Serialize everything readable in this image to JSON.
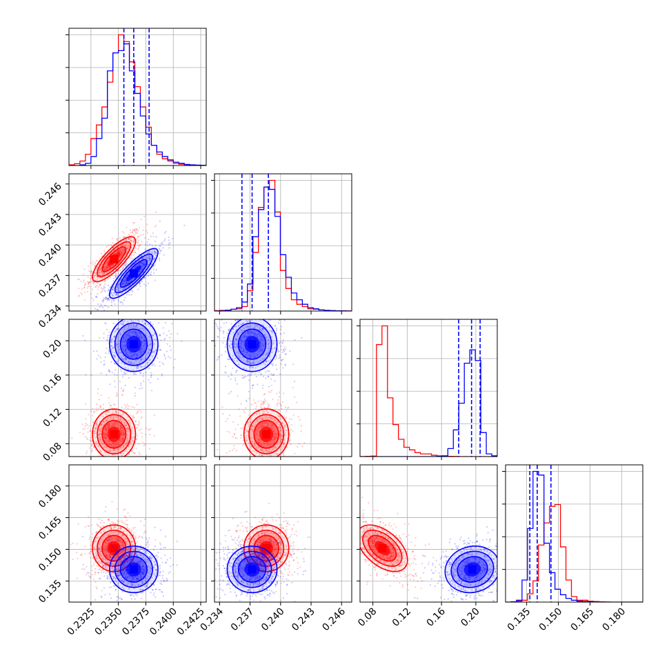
{
  "chart_data": {
    "type": "corner",
    "title": "",
    "grid": true,
    "parameters": 4,
    "series": [
      {
        "color": "#ff0000",
        "means": [
          0.2346,
          0.2386,
          0.091,
          0.1505
        ],
        "sds": [
          0.0008,
          0.0009,
          0.012,
          0.0045
        ]
      },
      {
        "color": "#0000ff",
        "means": [
          0.2364,
          0.2372,
          0.196,
          0.1405
        ],
        "sds": [
          0.0009,
          0.001,
          0.013,
          0.0045
        ]
      }
    ],
    "correlations": [
      {
        "pair": [
          0,
          1
        ],
        "red": 0.8,
        "blue": 0.85
      },
      {
        "pair": [
          0,
          2
        ],
        "red": 0.0,
        "blue": 0.0
      },
      {
        "pair": [
          1,
          2
        ],
        "red": 0.0,
        "blue": 0.0
      },
      {
        "pair": [
          0,
          3
        ],
        "red": 0.0,
        "blue": 0.0
      },
      {
        "pair": [
          1,
          3
        ],
        "red": 0.0,
        "blue": 0.0
      },
      {
        "pair": [
          2,
          3
        ],
        "red": -0.5,
        "blue": 0.1
      }
    ],
    "quantile_lines": [
      [
        0.2355,
        0.2364,
        0.2378
      ],
      [
        0.2362,
        0.2372,
        0.2388
      ],
      [
        0.18,
        0.195,
        0.205
      ],
      [
        0.1365,
        0.14,
        0.1465
      ]
    ],
    "ranges": [
      [
        0.2305,
        0.243
      ],
      [
        0.2335,
        0.247
      ],
      [
        0.065,
        0.225
      ],
      [
        0.125,
        0.19
      ]
    ],
    "ticks": [
      [
        "0.2325",
        "0.2350",
        "0.2375",
        "0.2400",
        "0.2425"
      ],
      [
        "0.234",
        "0.237",
        "0.240",
        "0.243",
        "0.246"
      ],
      [
        "0.08",
        "0.12",
        "0.16",
        "0.20"
      ],
      [
        "0.135",
        "0.150",
        "0.165",
        "0.180"
      ]
    ],
    "histograms": {
      "red": [
        [
          0.3,
          0.8,
          2.0,
          5.0,
          12.0,
          18.0,
          26.0,
          37.0,
          50.0,
          58.0,
          55.0,
          46.0,
          35.0,
          26.0,
          17.0,
          9.0,
          5.0,
          3.0,
          2.0,
          1.0,
          0.6,
          0.3,
          0.2,
          0.1,
          0.1
        ],
        [
          0.2,
          0.3,
          0.4,
          0.8,
          1.0,
          2.0,
          9.0,
          26.0,
          46.0,
          55.0,
          58.0,
          44.0,
          18.0,
          10.0,
          5.0,
          3.0,
          2.0,
          1.0,
          0.8,
          0.5,
          0.3,
          0.2,
          0.1,
          0.1,
          0.05
        ],
        [
          0.0,
          0.1,
          0.2,
          42.0,
          49.0,
          22.0,
          12.0,
          6.5,
          3.5,
          2.5,
          1.5,
          1.0,
          1.0,
          0.5,
          0.3,
          0.2,
          0.1,
          0.05,
          0.0,
          0.0,
          0.0,
          0.0,
          0.0,
          0.0,
          0.0
        ],
        [
          0.0,
          0.0,
          0.5,
          1.0,
          4.5,
          11.5,
          31.0,
          43.0,
          52.0,
          53.0,
          30.0,
          12.0,
          3.0,
          1.0,
          1.0,
          0.5,
          0.3,
          0.2,
          0.1,
          0.0,
          0.0,
          0.0,
          0.0,
          0.0,
          0.0
        ]
      ],
      "blue": [
        [
          0.0,
          0.0,
          0.3,
          1.0,
          4.0,
          12.0,
          21.0,
          42.0,
          50.0,
          51.0,
          54.0,
          42.0,
          32.0,
          22.0,
          14.0,
          9.0,
          6.0,
          4.0,
          2.5,
          1.5,
          1.0,
          0.5,
          0.3,
          0.2,
          0.1
        ],
        [
          0.0,
          0.1,
          0.3,
          0.8,
          1.5,
          4.0,
          12.0,
          33.0,
          45.0,
          55.0,
          54.0,
          42.0,
          25.0,
          15.0,
          8.0,
          5.0,
          3.0,
          1.5,
          1.0,
          0.5,
          0.3,
          0.2,
          0.1,
          0.05,
          0.0
        ],
        [
          0.0,
          0.0,
          0.0,
          0.0,
          0.0,
          0.0,
          0.0,
          0.0,
          0.0,
          0.0,
          0.0,
          0.0,
          0.0,
          0.0,
          0.1,
          0.3,
          3.0,
          10.0,
          20.0,
          35.0,
          40.0,
          36.0,
          9.0,
          1.0,
          0.3
        ],
        [
          0.0,
          0.2,
          1.0,
          12.0,
          40.0,
          71.0,
          69.0,
          32.0,
          16.0,
          7.0,
          4.0,
          2.0,
          1.0,
          0.5,
          0.3,
          0.2,
          0.1,
          0.0,
          0.0,
          0.0,
          0.0,
          0.0,
          0.0,
          0.0,
          0.0
        ]
      ]
    }
  }
}
